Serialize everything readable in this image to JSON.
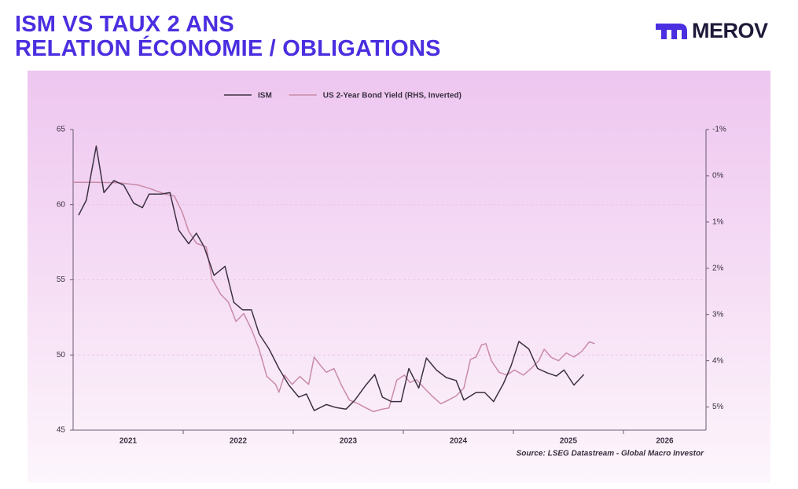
{
  "brand": "MEROV",
  "chart_data": {
    "type": "line",
    "title": "ISM VS TAUX 2 ANS",
    "subtitle": "RELATION ÉCONOMIE / OBLIGATIONS",
    "source": "Source: LSEG Datastream - Global Macro Investor",
    "categories": [
      "2021",
      "2022",
      "2023",
      "2024",
      "2025",
      "2026"
    ],
    "xlim": [
      2021,
      2026.75
    ],
    "xticks": [
      2022,
      2023,
      2024,
      2025,
      2026
    ],
    "ylim": [
      45,
      65
    ],
    "yticks": [
      45,
      50,
      55,
      60,
      65
    ],
    "y2lim": [
      5.5,
      -1
    ],
    "y2ticks": [
      {
        "value": -1,
        "label": "-1%"
      },
      {
        "value": 0,
        "label": "0%"
      },
      {
        "value": 1,
        "label": "1%"
      },
      {
        "value": 2,
        "label": "2%"
      },
      {
        "value": 3,
        "label": "3%"
      },
      {
        "value": 4,
        "label": "4%"
      },
      {
        "value": 5,
        "label": "5%"
      }
    ],
    "grid": true,
    "legend": "top",
    "series": [
      {
        "name": "ISM",
        "color": "#3b3142",
        "x": [
          2021.05,
          2021.12,
          2021.21,
          2021.28,
          2021.37,
          2021.46,
          2021.55,
          2021.63,
          2021.69,
          2021.8,
          2021.88,
          2021.96,
          2022.05,
          2022.12,
          2022.19,
          2022.28,
          2022.38,
          2022.46,
          2022.54,
          2022.62,
          2022.69,
          2022.78,
          2022.87,
          2022.96,
          2023.05,
          2023.12,
          2023.19,
          2023.3,
          2023.39,
          2023.48,
          2023.56,
          2023.66,
          2023.74,
          2023.81,
          2023.89,
          2023.98,
          2024.05,
          2024.14,
          2024.21,
          2024.3,
          2024.39,
          2024.48,
          2024.55,
          2024.66,
          2024.74,
          2024.82,
          2024.91,
          2024.98,
          2025.05,
          2025.14,
          2025.22,
          2025.31,
          2025.39,
          2025.46,
          2025.55,
          2025.64
        ],
        "values": [
          59.3,
          60.3,
          63.9,
          60.8,
          61.6,
          61.3,
          60.1,
          59.8,
          60.7,
          60.7,
          60.8,
          58.3,
          57.4,
          58.1,
          57.2,
          55.3,
          55.9,
          53.5,
          53.0,
          53.0,
          51.4,
          50.4,
          49.1,
          48.0,
          47.2,
          47.4,
          46.3,
          46.7,
          46.5,
          46.4,
          47.0,
          48.0,
          48.7,
          47.2,
          46.9,
          46.9,
          49.1,
          47.8,
          49.8,
          49.0,
          48.5,
          48.3,
          47.0,
          47.5,
          47.5,
          46.9,
          48.1,
          49.3,
          50.9,
          50.4,
          49.1,
          48.8,
          48.6,
          49.0,
          48.0,
          48.7
        ]
      },
      {
        "name": "US 2-Year Bond Yield (RHS, Inverted)",
        "color": "#c98aa8",
        "axis": "y2",
        "x": [
          2021.0,
          2021.19,
          2021.41,
          2021.59,
          2021.69,
          2021.84,
          2021.92,
          2021.99,
          2022.05,
          2022.12,
          2022.21,
          2022.26,
          2022.34,
          2022.41,
          2022.48,
          2022.55,
          2022.62,
          2022.69,
          2022.76,
          2022.84,
          2022.87,
          2022.92,
          2022.99,
          2023.06,
          2023.14,
          2023.19,
          2023.24,
          2023.3,
          2023.37,
          2023.44,
          2023.51,
          2023.59,
          2023.66,
          2023.73,
          2023.8,
          2023.87,
          2023.94,
          2024.01,
          2024.06,
          2024.12,
          2024.19,
          2024.26,
          2024.34,
          2024.41,
          2024.48,
          2024.55,
          2024.61,
          2024.66,
          2024.71,
          2024.75,
          2024.8,
          2024.87,
          2024.94,
          2025.01,
          2025.09,
          2025.16,
          2025.23,
          2025.28,
          2025.34,
          2025.41,
          2025.48,
          2025.55,
          2025.62,
          2025.69,
          2025.74
        ],
        "values": [
          0.14,
          0.14,
          0.15,
          0.2,
          0.27,
          0.4,
          0.44,
          0.78,
          1.2,
          1.46,
          1.54,
          2.22,
          2.56,
          2.73,
          3.15,
          2.98,
          3.32,
          3.75,
          4.34,
          4.51,
          4.68,
          4.31,
          4.51,
          4.34,
          4.51,
          3.92,
          4.08,
          4.25,
          4.17,
          4.54,
          4.85,
          4.93,
          5.02,
          5.1,
          5.05,
          5.02,
          4.42,
          4.31,
          4.47,
          4.41,
          4.59,
          4.76,
          4.93,
          4.85,
          4.76,
          4.59,
          3.97,
          3.92,
          3.66,
          3.63,
          4.0,
          4.25,
          4.31,
          4.2,
          4.31,
          4.17,
          4.0,
          3.75,
          3.92,
          4.0,
          3.83,
          3.92,
          3.8,
          3.59,
          3.63
        ]
      }
    ]
  }
}
